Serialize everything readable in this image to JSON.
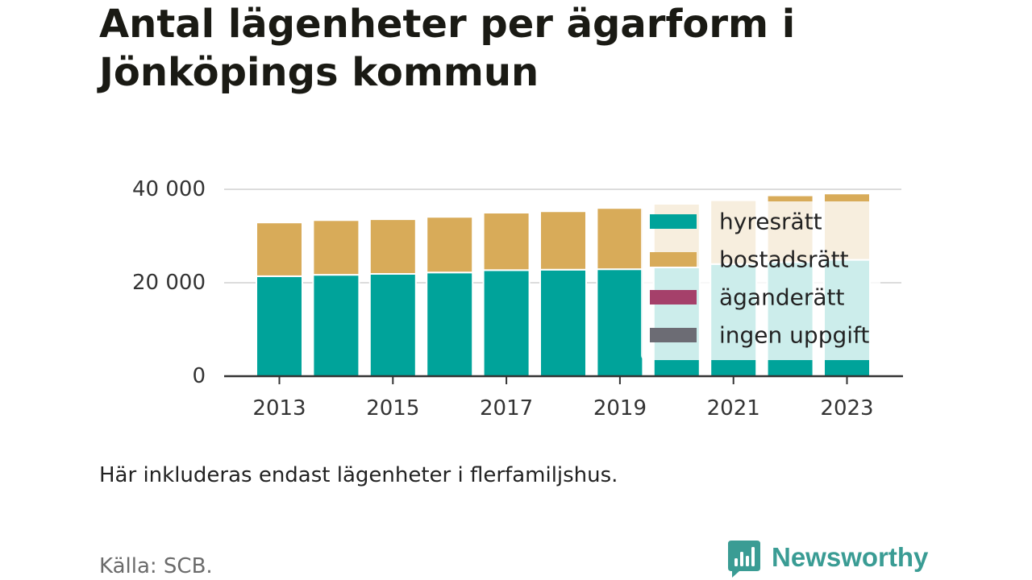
{
  "chart_data": {
    "type": "bar",
    "stacked": true,
    "title": "Antal lägenheter per ägarform i Jönköpings kommun",
    "note": "Här inkluderas endast lägenheter i flerfamiljshus.",
    "source": "Källa: SCB.",
    "categories": [
      2013,
      2014,
      2015,
      2016,
      2017,
      2018,
      2019,
      2020,
      2021,
      2022,
      2023
    ],
    "x_tick_labels": [
      "2013",
      "2015",
      "2017",
      "2019",
      "2021",
      "2023"
    ],
    "y_ticks": [
      0,
      20000,
      40000
    ],
    "y_tick_labels": [
      "0",
      "20 000",
      "40 000"
    ],
    "ylim": [
      0,
      40000
    ],
    "grid": true,
    "legend_position": "right",
    "series": [
      {
        "name": "hyresrätt",
        "color": "#00a39a",
        "values": [
          21400,
          21700,
          21900,
          22200,
          22700,
          22800,
          22900,
          23300,
          24000,
          24400,
          24900
        ]
      },
      {
        "name": "bostadsrätt",
        "color": "#d8ab59",
        "values": [
          11500,
          11700,
          11700,
          11900,
          12300,
          12500,
          13100,
          13600,
          13600,
          14300,
          14200
        ]
      },
      {
        "name": "äganderätt",
        "color": "#a5406a",
        "values": [
          0,
          0,
          0,
          0,
          0,
          0,
          0,
          0,
          0,
          0,
          0
        ]
      },
      {
        "name": "ingen uppgift",
        "color": "#6c6c74",
        "values": [
          0,
          0,
          0,
          0,
          0,
          0,
          0,
          0,
          0,
          0,
          0
        ]
      }
    ]
  },
  "brand": {
    "name": "Newsworthy",
    "icon": "newsworthy-logo-icon",
    "color": "#3a9c94"
  }
}
